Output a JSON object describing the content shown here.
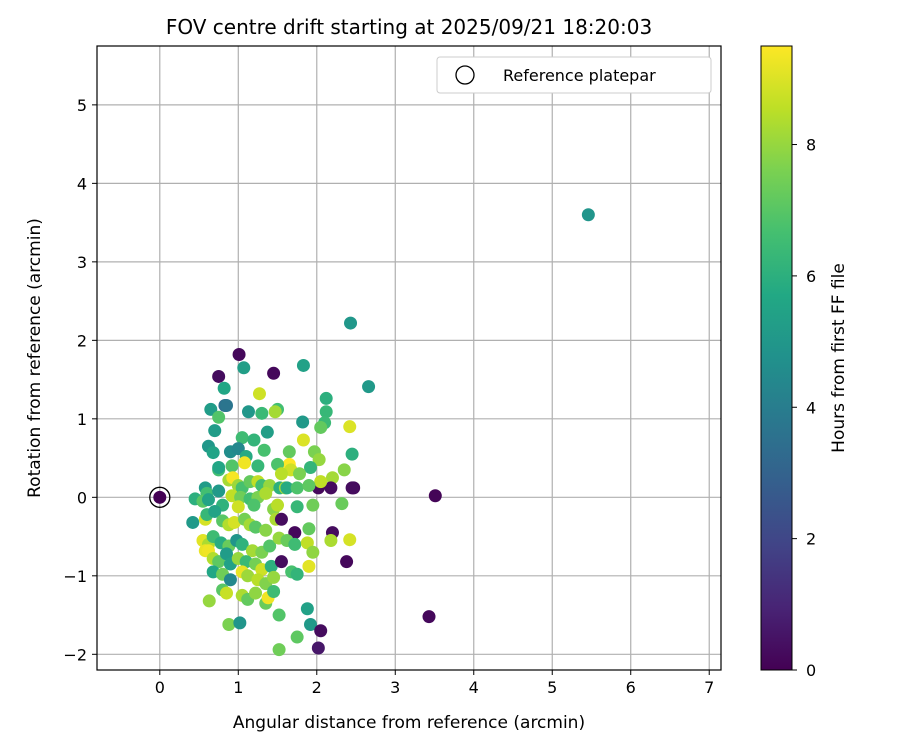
{
  "chart_data": {
    "type": "scatter",
    "title": "FOV centre drift starting at 2025/09/21 18:20:03",
    "xlabel": "Angular distance from reference (arcmin)",
    "ylabel": "Rotation from reference (arcmin)",
    "xlim": [
      -0.8,
      7.15
    ],
    "ylim": [
      -2.2,
      5.75
    ],
    "xticks": [
      0,
      1,
      2,
      3,
      4,
      5,
      6,
      7
    ],
    "yticks": [
      -2,
      -1,
      0,
      1,
      2,
      3,
      4,
      5
    ],
    "grid": true,
    "legend": {
      "position": "top-right",
      "entries": [
        "Reference platepar"
      ]
    },
    "reference_point": {
      "x": 0,
      "y": 0
    },
    "colorbar": {
      "label": "Hours from first FF file",
      "range": [
        0,
        9.5
      ],
      "ticks": [
        0,
        2,
        4,
        6,
        8
      ],
      "colormap": "viridis"
    },
    "points": [
      {
        "x": 5.46,
        "y": 3.6,
        "c": 4.9
      },
      {
        "x": 2.43,
        "y": 2.22,
        "c": 5.0
      },
      {
        "x": 2.66,
        "y": 1.41,
        "c": 5.1
      },
      {
        "x": 1.83,
        "y": 1.68,
        "c": 5.4
      },
      {
        "x": 1.01,
        "y": 1.82,
        "c": 0.2
      },
      {
        "x": 0.75,
        "y": 1.54,
        "c": 0.3
      },
      {
        "x": 1.45,
        "y": 1.58,
        "c": 0.2
      },
      {
        "x": 0.82,
        "y": 1.39,
        "c": 5.6
      },
      {
        "x": 1.07,
        "y": 1.65,
        "c": 5.3
      },
      {
        "x": 0.83,
        "y": 1.17,
        "c": 3.4
      },
      {
        "x": 0.85,
        "y": 1.17,
        "c": 3.7
      },
      {
        "x": 0.65,
        "y": 1.12,
        "c": 5.2
      },
      {
        "x": 1.13,
        "y": 1.09,
        "c": 5.0
      },
      {
        "x": 1.27,
        "y": 1.32,
        "c": 8.8
      },
      {
        "x": 1.5,
        "y": 1.12,
        "c": 6.6
      },
      {
        "x": 1.47,
        "y": 1.09,
        "c": 8.2
      },
      {
        "x": 1.3,
        "y": 1.07,
        "c": 6.4
      },
      {
        "x": 0.7,
        "y": 0.85,
        "c": 5.2
      },
      {
        "x": 0.75,
        "y": 1.02,
        "c": 6.9
      },
      {
        "x": 1.82,
        "y": 0.96,
        "c": 5.1
      },
      {
        "x": 2.12,
        "y": 1.26,
        "c": 6.0
      },
      {
        "x": 2.12,
        "y": 1.09,
        "c": 6.3
      },
      {
        "x": 2.1,
        "y": 0.95,
        "c": 6.4
      },
      {
        "x": 2.05,
        "y": 0.89,
        "c": 7.2
      },
      {
        "x": 2.42,
        "y": 0.9,
        "c": 9.0
      },
      {
        "x": 1.37,
        "y": 0.83,
        "c": 5.3
      },
      {
        "x": 1.05,
        "y": 0.76,
        "c": 6.5
      },
      {
        "x": 1.2,
        "y": 0.73,
        "c": 6.2
      },
      {
        "x": 0.62,
        "y": 0.65,
        "c": 5.0
      },
      {
        "x": 0.68,
        "y": 0.57,
        "c": 5.5
      },
      {
        "x": 0.9,
        "y": 0.58,
        "c": 4.6
      },
      {
        "x": 1.0,
        "y": 0.62,
        "c": 4.4
      },
      {
        "x": 1.1,
        "y": 0.52,
        "c": 5.8
      },
      {
        "x": 1.33,
        "y": 0.6,
        "c": 6.7
      },
      {
        "x": 1.65,
        "y": 0.58,
        "c": 7.2
      },
      {
        "x": 1.83,
        "y": 0.73,
        "c": 9.0
      },
      {
        "x": 1.97,
        "y": 0.58,
        "c": 7.6
      },
      {
        "x": 2.03,
        "y": 0.48,
        "c": 8.0
      },
      {
        "x": 2.45,
        "y": 0.55,
        "c": 6.0
      },
      {
        "x": 2.35,
        "y": 0.35,
        "c": 7.8
      },
      {
        "x": 2.2,
        "y": 0.25,
        "c": 8.2
      },
      {
        "x": 2.47,
        "y": 0.12,
        "c": 0.2
      },
      {
        "x": 2.45,
        "y": 0.12,
        "c": 0.3
      },
      {
        "x": 2.02,
        "y": 0.12,
        "c": 0.2
      },
      {
        "x": 2.18,
        "y": 0.12,
        "c": 0.3
      },
      {
        "x": 2.05,
        "y": 0.2,
        "c": 8.6
      },
      {
        "x": 1.08,
        "y": 0.44,
        "c": 9.3
      },
      {
        "x": 1.65,
        "y": 0.42,
        "c": 9.5
      },
      {
        "x": 1.67,
        "y": 0.35,
        "c": 8.8
      },
      {
        "x": 0.75,
        "y": 0.35,
        "c": 6.6
      },
      {
        "x": 0.75,
        "y": 0.38,
        "c": 5.6
      },
      {
        "x": 0.92,
        "y": 0.4,
        "c": 6.9
      },
      {
        "x": 1.25,
        "y": 0.4,
        "c": 6.3
      },
      {
        "x": 1.5,
        "y": 0.42,
        "c": 6.8
      },
      {
        "x": 1.92,
        "y": 0.38,
        "c": 6.2
      },
      {
        "x": 1.55,
        "y": 0.3,
        "c": 8.5
      },
      {
        "x": 1.78,
        "y": 0.3,
        "c": 7.6
      },
      {
        "x": 0.58,
        "y": 0.12,
        "c": 5.2
      },
      {
        "x": 0.6,
        "y": 0.05,
        "c": 6.6
      },
      {
        "x": 0.75,
        "y": 0.08,
        "c": 5.1
      },
      {
        "x": 0.88,
        "y": 0.22,
        "c": 8.2
      },
      {
        "x": 0.93,
        "y": 0.25,
        "c": 9.4
      },
      {
        "x": 1.0,
        "y": 0.15,
        "c": 8.1
      },
      {
        "x": 1.05,
        "y": 0.12,
        "c": 6.7
      },
      {
        "x": 1.15,
        "y": 0.2,
        "c": 7.2
      },
      {
        "x": 1.25,
        "y": 0.2,
        "c": 8.6
      },
      {
        "x": 1.3,
        "y": 0.15,
        "c": 6.6
      },
      {
        "x": 1.4,
        "y": 0.15,
        "c": 8.0
      },
      {
        "x": 1.53,
        "y": 0.12,
        "c": 6.0
      },
      {
        "x": 1.6,
        "y": 0.12,
        "c": 8.2
      },
      {
        "x": 1.62,
        "y": 0.12,
        "c": 5.8
      },
      {
        "x": 1.75,
        "y": 0.12,
        "c": 6.8
      },
      {
        "x": 1.9,
        "y": 0.15,
        "c": 7.1
      },
      {
        "x": 0.92,
        "y": 0.02,
        "c": 8.6
      },
      {
        "x": 1.03,
        "y": 0.0,
        "c": 7.4
      },
      {
        "x": 1.15,
        "y": -0.02,
        "c": 6.6
      },
      {
        "x": 1.25,
        "y": 0.0,
        "c": 7.6
      },
      {
        "x": 1.35,
        "y": 0.05,
        "c": 8.3
      },
      {
        "x": 0.45,
        "y": -0.02,
        "c": 6.0
      },
      {
        "x": 0.55,
        "y": -0.05,
        "c": 7.0
      },
      {
        "x": 0.62,
        "y": -0.03,
        "c": 5.5
      },
      {
        "x": 0.8,
        "y": -0.1,
        "c": 6.1
      },
      {
        "x": 1.0,
        "y": -0.12,
        "c": 8.8
      },
      {
        "x": 1.2,
        "y": -0.1,
        "c": 6.8
      },
      {
        "x": 1.45,
        "y": -0.15,
        "c": 7.8
      },
      {
        "x": 1.5,
        "y": -0.1,
        "c": 8.5
      },
      {
        "x": 1.75,
        "y": -0.12,
        "c": 6.3
      },
      {
        "x": 1.95,
        "y": -0.1,
        "c": 7.4
      },
      {
        "x": 2.32,
        "y": -0.08,
        "c": 7.3
      },
      {
        "x": 3.51,
        "y": 0.02,
        "c": 0.1
      },
      {
        "x": 0.42,
        "y": -0.32,
        "c": 5.1
      },
      {
        "x": 0.58,
        "y": -0.28,
        "c": 8.9
      },
      {
        "x": 0.6,
        "y": -0.22,
        "c": 6.3
      },
      {
        "x": 0.7,
        "y": -0.18,
        "c": 5.5
      },
      {
        "x": 0.8,
        "y": -0.3,
        "c": 7.0
      },
      {
        "x": 0.88,
        "y": -0.35,
        "c": 8.4
      },
      {
        "x": 0.95,
        "y": -0.32,
        "c": 8.9
      },
      {
        "x": 1.08,
        "y": -0.28,
        "c": 7.5
      },
      {
        "x": 1.15,
        "y": -0.35,
        "c": 8.2
      },
      {
        "x": 1.22,
        "y": -0.38,
        "c": 7.0
      },
      {
        "x": 1.35,
        "y": -0.42,
        "c": 7.8
      },
      {
        "x": 1.48,
        "y": -0.28,
        "c": 8.3
      },
      {
        "x": 1.55,
        "y": -0.28,
        "c": 0.3
      },
      {
        "x": 1.72,
        "y": -0.45,
        "c": 0.2
      },
      {
        "x": 1.9,
        "y": -0.4,
        "c": 7.2
      },
      {
        "x": 2.2,
        "y": -0.45,
        "c": 0.3
      },
      {
        "x": 2.18,
        "y": -0.55,
        "c": 8.3
      },
      {
        "x": 2.42,
        "y": -0.54,
        "c": 8.9
      },
      {
        "x": 0.55,
        "y": -0.55,
        "c": 9.1
      },
      {
        "x": 0.62,
        "y": -0.6,
        "c": 8.3
      },
      {
        "x": 0.58,
        "y": -0.68,
        "c": 9.2
      },
      {
        "x": 0.68,
        "y": -0.5,
        "c": 6.5
      },
      {
        "x": 0.78,
        "y": -0.58,
        "c": 5.9
      },
      {
        "x": 0.88,
        "y": -0.62,
        "c": 7.3
      },
      {
        "x": 0.98,
        "y": -0.55,
        "c": 4.9
      },
      {
        "x": 1.05,
        "y": -0.6,
        "c": 6.1
      },
      {
        "x": 1.18,
        "y": -0.68,
        "c": 8.2
      },
      {
        "x": 1.3,
        "y": -0.7,
        "c": 7.6
      },
      {
        "x": 1.4,
        "y": -0.62,
        "c": 6.9
      },
      {
        "x": 1.52,
        "y": -0.52,
        "c": 8.0
      },
      {
        "x": 1.62,
        "y": -0.55,
        "c": 7.3
      },
      {
        "x": 1.72,
        "y": -0.6,
        "c": 6.5
      },
      {
        "x": 1.88,
        "y": -0.58,
        "c": 8.6
      },
      {
        "x": 1.95,
        "y": -0.7,
        "c": 7.9
      },
      {
        "x": 0.62,
        "y": -0.68,
        "c": 9.3
      },
      {
        "x": 0.68,
        "y": -0.78,
        "c": 8.4
      },
      {
        "x": 0.75,
        "y": -0.82,
        "c": 7.1
      },
      {
        "x": 0.85,
        "y": -0.72,
        "c": 5.2
      },
      {
        "x": 0.9,
        "y": -0.85,
        "c": 5.4
      },
      {
        "x": 1.0,
        "y": -0.78,
        "c": 8.0
      },
      {
        "x": 1.1,
        "y": -0.82,
        "c": 6.4
      },
      {
        "x": 1.22,
        "y": -0.85,
        "c": 7.5
      },
      {
        "x": 1.3,
        "y": -0.92,
        "c": 8.8
      },
      {
        "x": 1.42,
        "y": -0.88,
        "c": 6.0
      },
      {
        "x": 1.55,
        "y": -0.82,
        "c": 0.3
      },
      {
        "x": 1.68,
        "y": -0.95,
        "c": 6.7
      },
      {
        "x": 1.75,
        "y": -0.98,
        "c": 6.2
      },
      {
        "x": 1.9,
        "y": -0.88,
        "c": 9.1
      },
      {
        "x": 2.38,
        "y": -0.82,
        "c": 0.2
      },
      {
        "x": 0.68,
        "y": -0.95,
        "c": 5.6
      },
      {
        "x": 0.8,
        "y": -0.98,
        "c": 7.4
      },
      {
        "x": 0.9,
        "y": -1.05,
        "c": 4.4
      },
      {
        "x": 1.05,
        "y": -0.95,
        "c": 9.2
      },
      {
        "x": 1.12,
        "y": -1.0,
        "c": 8.1
      },
      {
        "x": 1.25,
        "y": -1.05,
        "c": 8.5
      },
      {
        "x": 1.35,
        "y": -1.1,
        "c": 7.7
      },
      {
        "x": 1.45,
        "y": -1.02,
        "c": 8.0
      },
      {
        "x": 0.8,
        "y": -1.18,
        "c": 7.0
      },
      {
        "x": 0.85,
        "y": -1.22,
        "c": 8.7
      },
      {
        "x": 1.05,
        "y": -1.25,
        "c": 8.3
      },
      {
        "x": 1.12,
        "y": -1.3,
        "c": 7.2
      },
      {
        "x": 1.22,
        "y": -1.22,
        "c": 7.9
      },
      {
        "x": 1.35,
        "y": -1.35,
        "c": 7.3
      },
      {
        "x": 1.38,
        "y": -1.28,
        "c": 9.3
      },
      {
        "x": 1.45,
        "y": -1.2,
        "c": 6.5
      },
      {
        "x": 0.63,
        "y": -1.32,
        "c": 8.0
      },
      {
        "x": 1.52,
        "y": -1.5,
        "c": 6.9
      },
      {
        "x": 1.88,
        "y": -1.42,
        "c": 5.4
      },
      {
        "x": 0.88,
        "y": -1.62,
        "c": 7.6
      },
      {
        "x": 1.02,
        "y": -1.6,
        "c": 4.9
      },
      {
        "x": 1.92,
        "y": -1.62,
        "c": 5.1
      },
      {
        "x": 2.05,
        "y": -1.7,
        "c": 0.3
      },
      {
        "x": 1.75,
        "y": -1.78,
        "c": 7.1
      },
      {
        "x": 1.52,
        "y": -1.94,
        "c": 7.4
      },
      {
        "x": 2.02,
        "y": -1.92,
        "c": 0.6
      },
      {
        "x": 3.43,
        "y": -1.52,
        "c": 0.2
      }
    ]
  }
}
